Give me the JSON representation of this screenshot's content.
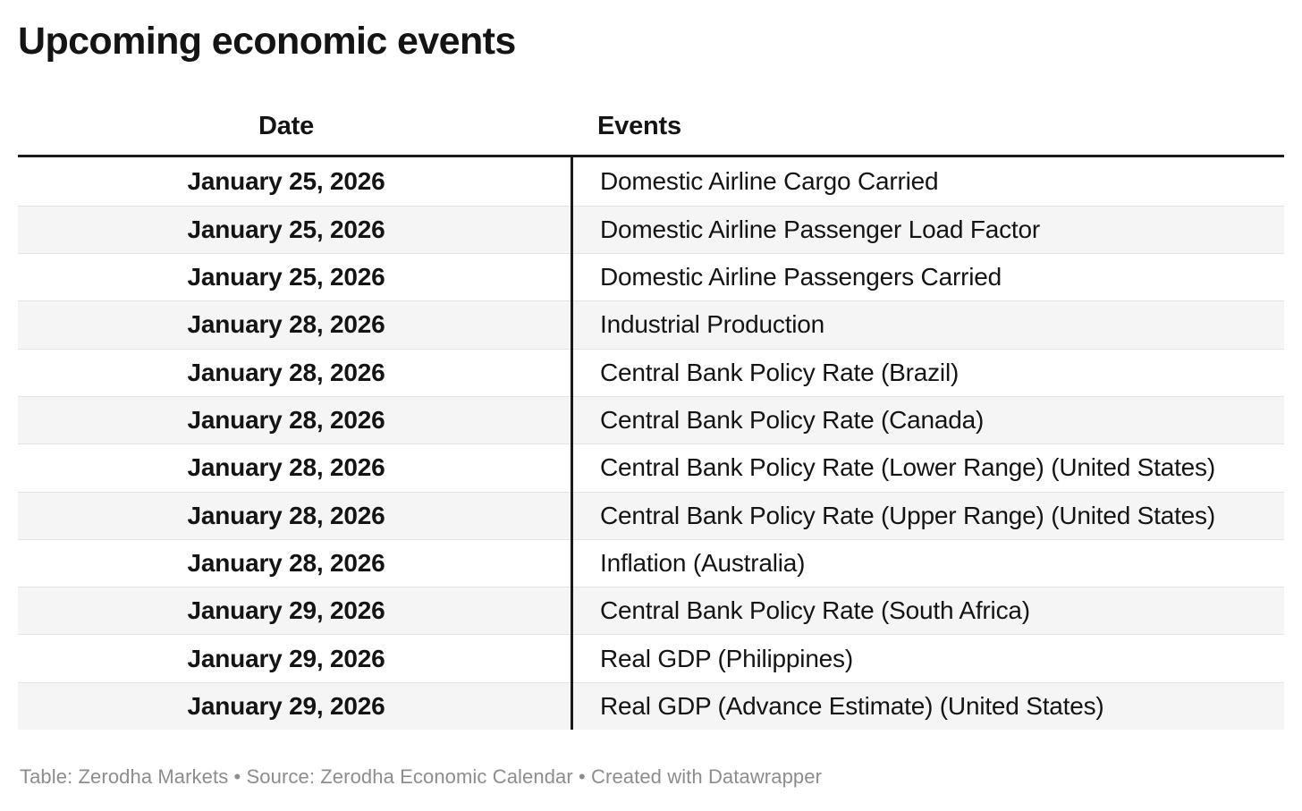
{
  "chart_data": {
    "type": "table",
    "title": "Upcoming economic events",
    "columns": [
      {
        "label": "Date",
        "align": "center"
      },
      {
        "label": "Events",
        "align": "left"
      }
    ],
    "rows": [
      {
        "date": "January 25, 2026",
        "event": "Domestic Airline Cargo Carried"
      },
      {
        "date": "January 25, 2026",
        "event": "Domestic Airline Passenger Load Factor"
      },
      {
        "date": "January 25, 2026",
        "event": "Domestic Airline Passengers Carried"
      },
      {
        "date": "January 28, 2026",
        "event": "Industrial Production"
      },
      {
        "date": "January 28, 2026",
        "event": "Central Bank Policy Rate (Brazil)"
      },
      {
        "date": "January 28, 2026",
        "event": "Central Bank Policy Rate (Canada)"
      },
      {
        "date": "January 28, 2026",
        "event": "Central Bank Policy Rate (Lower Range) (United States)"
      },
      {
        "date": "January 28, 2026",
        "event": "Central Bank Policy Rate (Upper Range) (United States)"
      },
      {
        "date": "January 28, 2026",
        "event": "Inflation (Australia)"
      },
      {
        "date": "January 29, 2026",
        "event": "Central Bank Policy Rate (South Africa)"
      },
      {
        "date": "January 29, 2026",
        "event": "Real GDP (Philippines)"
      },
      {
        "date": "January 29, 2026",
        "event": "Real GDP (Advance Estimate) (United States)"
      }
    ],
    "footnote": "Table: Zerodha Markets • Source: Zerodha Economic Calendar • Created with Datawrapper",
    "layout_hints": {
      "striped_rows": true,
      "header_rule": "3px solid black",
      "column_divider": "3px solid black"
    }
  },
  "colors": {
    "bg": "#ffffff",
    "text": "#141414",
    "rule": "#1a1a1a",
    "stripe": "#f5f5f5",
    "separator": "#e3e3e3",
    "footer-text": "#8d8d8d"
  }
}
